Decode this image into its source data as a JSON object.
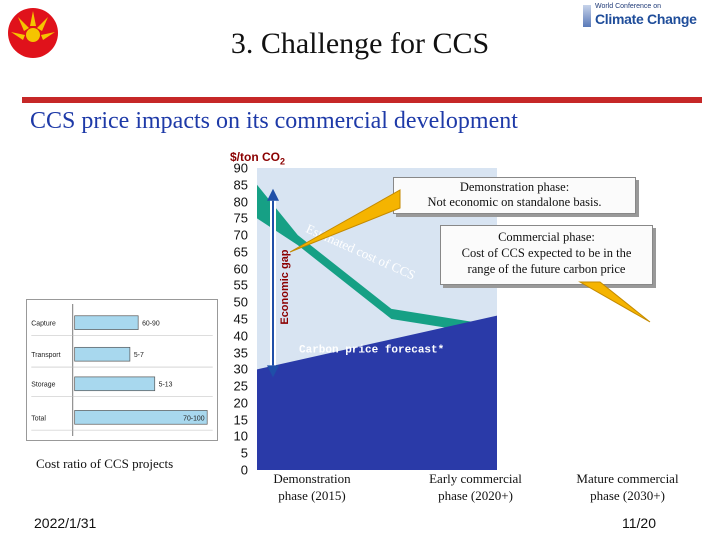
{
  "header": {
    "logo_small_text": "World Conference on",
    "logo_big_text": "Climate Change",
    "title": "3. Challenge for CCS"
  },
  "subtitle": "CCS price impacts on its commercial development",
  "footer": {
    "date": "2022/1/31",
    "page": "11/20"
  },
  "colors": {
    "title_rule": "#c62828",
    "subtitle": "#1e3aa8",
    "chart_background": "#d8e4f2",
    "cost_band": "#16a085",
    "carbon_price": "#2a3aa8",
    "axis_label": "#8b0000"
  },
  "cost_ratio_label": "Cost ratio of CCS projects",
  "cost_ratio_table": [
    {
      "label": "Capture",
      "value": "60-90",
      "fraction": 0.46
    },
    {
      "label": "Transport",
      "value": "5-7",
      "fraction": 0.4
    },
    {
      "label": "Storage",
      "value": "5-13",
      "fraction": 0.58
    },
    {
      "label": "Total",
      "value": "70-100",
      "fraction": 0.96
    }
  ],
  "chart_data": {
    "type": "area",
    "ylabel": "$/ton CO",
    "ylabel_subscript": "2",
    "ylim": [
      0,
      90
    ],
    "yticks": [
      90,
      85,
      80,
      75,
      70,
      65,
      60,
      55,
      50,
      45,
      40,
      35,
      30,
      25,
      20,
      15,
      10,
      5,
      0
    ],
    "x_phases": [
      {
        "line1": "Demonstration",
        "line2": "phase (2015)"
      },
      {
        "line1": "Early commercial",
        "line2": "phase (2020+)"
      },
      {
        "line1": "Mature commercial",
        "line2": "phase (2030+)"
      }
    ],
    "series": [
      {
        "name": "Estimated cost of CCS",
        "x": [
          0,
          0.17,
          0.56,
          1.0
        ],
        "values": [
          85,
          70,
          48,
          43
        ]
      },
      {
        "name": "Carbon price forecast*",
        "x": [
          0,
          1.0
        ],
        "values": [
          30,
          46
        ]
      }
    ],
    "band_lower": {
      "x": [
        0,
        0.17,
        0.56,
        1.0
      ],
      "values": [
        75,
        67,
        45,
        40
      ]
    },
    "economic_gap_label": "Economic gap",
    "estimated_cost_label": "Estimated cost of CCS",
    "carbon_price_label": "Carbon price forecast*",
    "callouts": [
      {
        "line1": "Demonstration phase:",
        "line2": "Not economic on standalone basis."
      },
      {
        "line1": "Commercial phase:",
        "line2": "Cost of CCS expected to be in the",
        "line3": "range of the future carbon price"
      }
    ]
  }
}
